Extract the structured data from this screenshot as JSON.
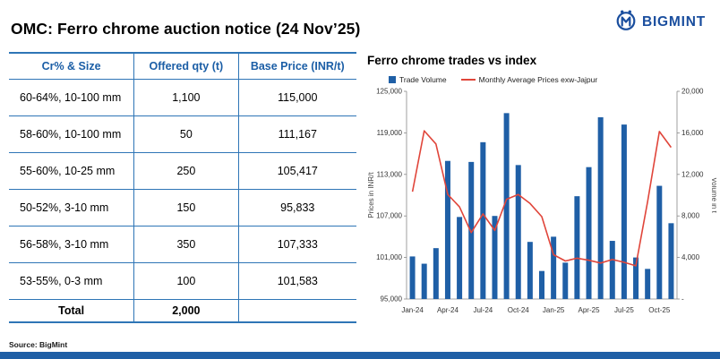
{
  "header": {
    "title": "OMC: Ferro chrome auction notice (24 Nov’25)",
    "brand": "BIGMINT"
  },
  "source": "Source: BigMint",
  "colors": {
    "bar": "#1F5FA6",
    "line": "#E0453A",
    "table_border": "#2E75B6",
    "header_text": "#1B5EA6",
    "brand_blue": "#1A4E9E"
  },
  "table": {
    "columns": [
      "Cr% & Size",
      "Offered qty (t)",
      "Base Price (INR/t)"
    ],
    "rows": [
      [
        "60-64%,  10-100 mm",
        "1,100",
        "115,000"
      ],
      [
        "58-60%,  10-100 mm",
        "50",
        "111,167"
      ],
      [
        "55-60%,  10-25 mm",
        "250",
        "105,417"
      ],
      [
        "50-52%,  3-10 mm",
        "150",
        "95,833"
      ],
      [
        "56-58%,  3-10 mm",
        "350",
        "107,333"
      ],
      [
        "53-55%,  0-3 mm",
        "100",
        "101,583"
      ]
    ],
    "total_row": {
      "label": "Total",
      "qty": "2,000",
      "price": ""
    }
  },
  "chart_data": {
    "type": "bar",
    "title": "Ferro chrome trades vs index",
    "x": [
      "Jan-24",
      "Feb-24",
      "Mar-24",
      "Apr-24",
      "May-24",
      "Jun-24",
      "Jul-24",
      "Aug-24",
      "Sep-24",
      "Oct-24",
      "Nov-24",
      "Dec-24",
      "Jan-25",
      "Feb-25",
      "Mar-25",
      "Apr-25",
      "May-25",
      "Jun-25",
      "Jul-25",
      "Aug-25",
      "Sep-25",
      "Oct-25",
      "Nov-25"
    ],
    "series": [
      {
        "name": "Trade Volume",
        "type": "bar",
        "axis": "right",
        "values": [
          4100,
          3400,
          4900,
          13300,
          7900,
          13200,
          15100,
          8000,
          17900,
          12900,
          5500,
          2700,
          6000,
          3500,
          9900,
          12700,
          17500,
          5600,
          16800,
          4000,
          2900,
          10900,
          7300
        ]
      },
      {
        "name": "Monthly Average Prices exw-Jajpur",
        "type": "line",
        "axis": "left",
        "values": [
          110500,
          119300,
          117400,
          110100,
          108300,
          104600,
          107300,
          104900,
          109400,
          110100,
          108800,
          106900,
          101400,
          100500,
          100900,
          100600,
          100200,
          100700,
          100300,
          99800,
          109100,
          119200,
          116900
        ]
      }
    ],
    "left_axis": {
      "label": "Prices in INR/t",
      "min": 95000,
      "max": 125000,
      "ticks": [
        "125,000",
        "119,000",
        "113,000",
        "107,000",
        "101,000",
        "95,000"
      ]
    },
    "right_axis": {
      "label": "Volume in t",
      "min": 0,
      "max": 20000,
      "ticks": [
        "20,000",
        "16,000",
        "12,000",
        "8,000",
        "4,000",
        "-"
      ]
    },
    "x_tick_labels": [
      "Jan-24",
      "Apr-24",
      "Jul-24",
      "Oct-24",
      "Jan-25",
      "Apr-25",
      "Jul-25",
      "Oct-25"
    ],
    "legend_position": "top",
    "grid": false
  }
}
